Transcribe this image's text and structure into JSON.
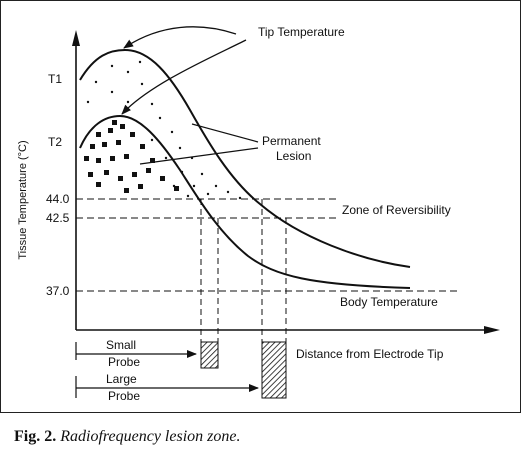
{
  "diagram": {
    "y_axis_label": "Tissue Temperature (°C)",
    "y_ticks": [
      "T1",
      "T2",
      "44.0",
      "42.5",
      "37.0"
    ],
    "labels": {
      "tip_temperature": "Tip Temperature",
      "permanent": "Permanent",
      "lesion": "Lesion",
      "zone_of_reversibility": "Zone of Reversibility",
      "body_temperature": "Body Temperature",
      "distance": "Distance from Electrode Tip",
      "small": "Small",
      "probe_small": "Probe",
      "large": "Large",
      "probe_large": "Probe"
    }
  },
  "caption": {
    "figure": "Fig. 2.",
    "text": "Radiofrequency lesion zone."
  }
}
